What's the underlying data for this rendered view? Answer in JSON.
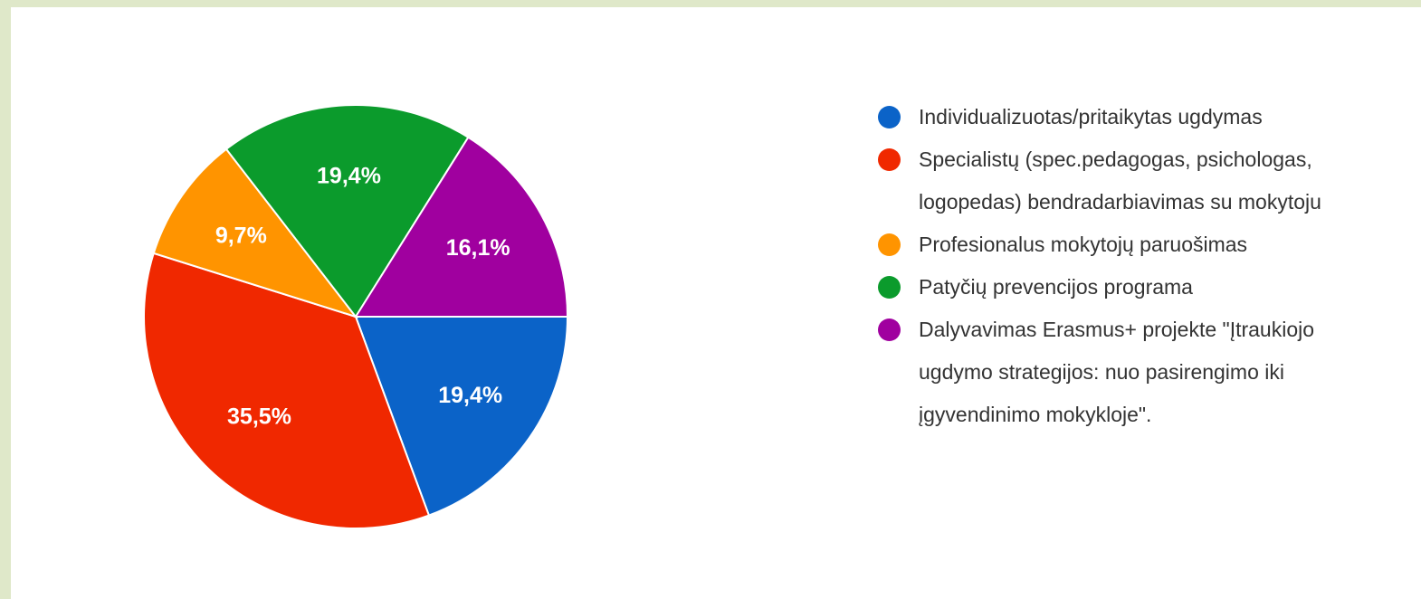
{
  "chart_data": {
    "type": "pie",
    "categories": [
      "Individualizuotas/pritaikytas ugdymas",
      "Specialistų (spec.pedagogas, psichologas, logopedas) bendradarbiavimas su mokytoju",
      "Profesionalus mokytojų paruošimas",
      "Patyčių prevencijos programa",
      "Dalyvavimas Erasmus+ projekte \"Įtraukiojo ugdymo strategijos: nuo pasirengimo iki įgyvendinimo mokykloje\"."
    ],
    "values": [
      19.4,
      35.5,
      9.7,
      19.4,
      16.1
    ],
    "value_labels": [
      "19,4%",
      "35,5%",
      "9,7%",
      "19,4%",
      "16,1%"
    ],
    "colors": [
      "#0b63c8",
      "#f02800",
      "#ff9400",
      "#0b9b2c",
      "#a0009f"
    ],
    "legend": "right"
  }
}
